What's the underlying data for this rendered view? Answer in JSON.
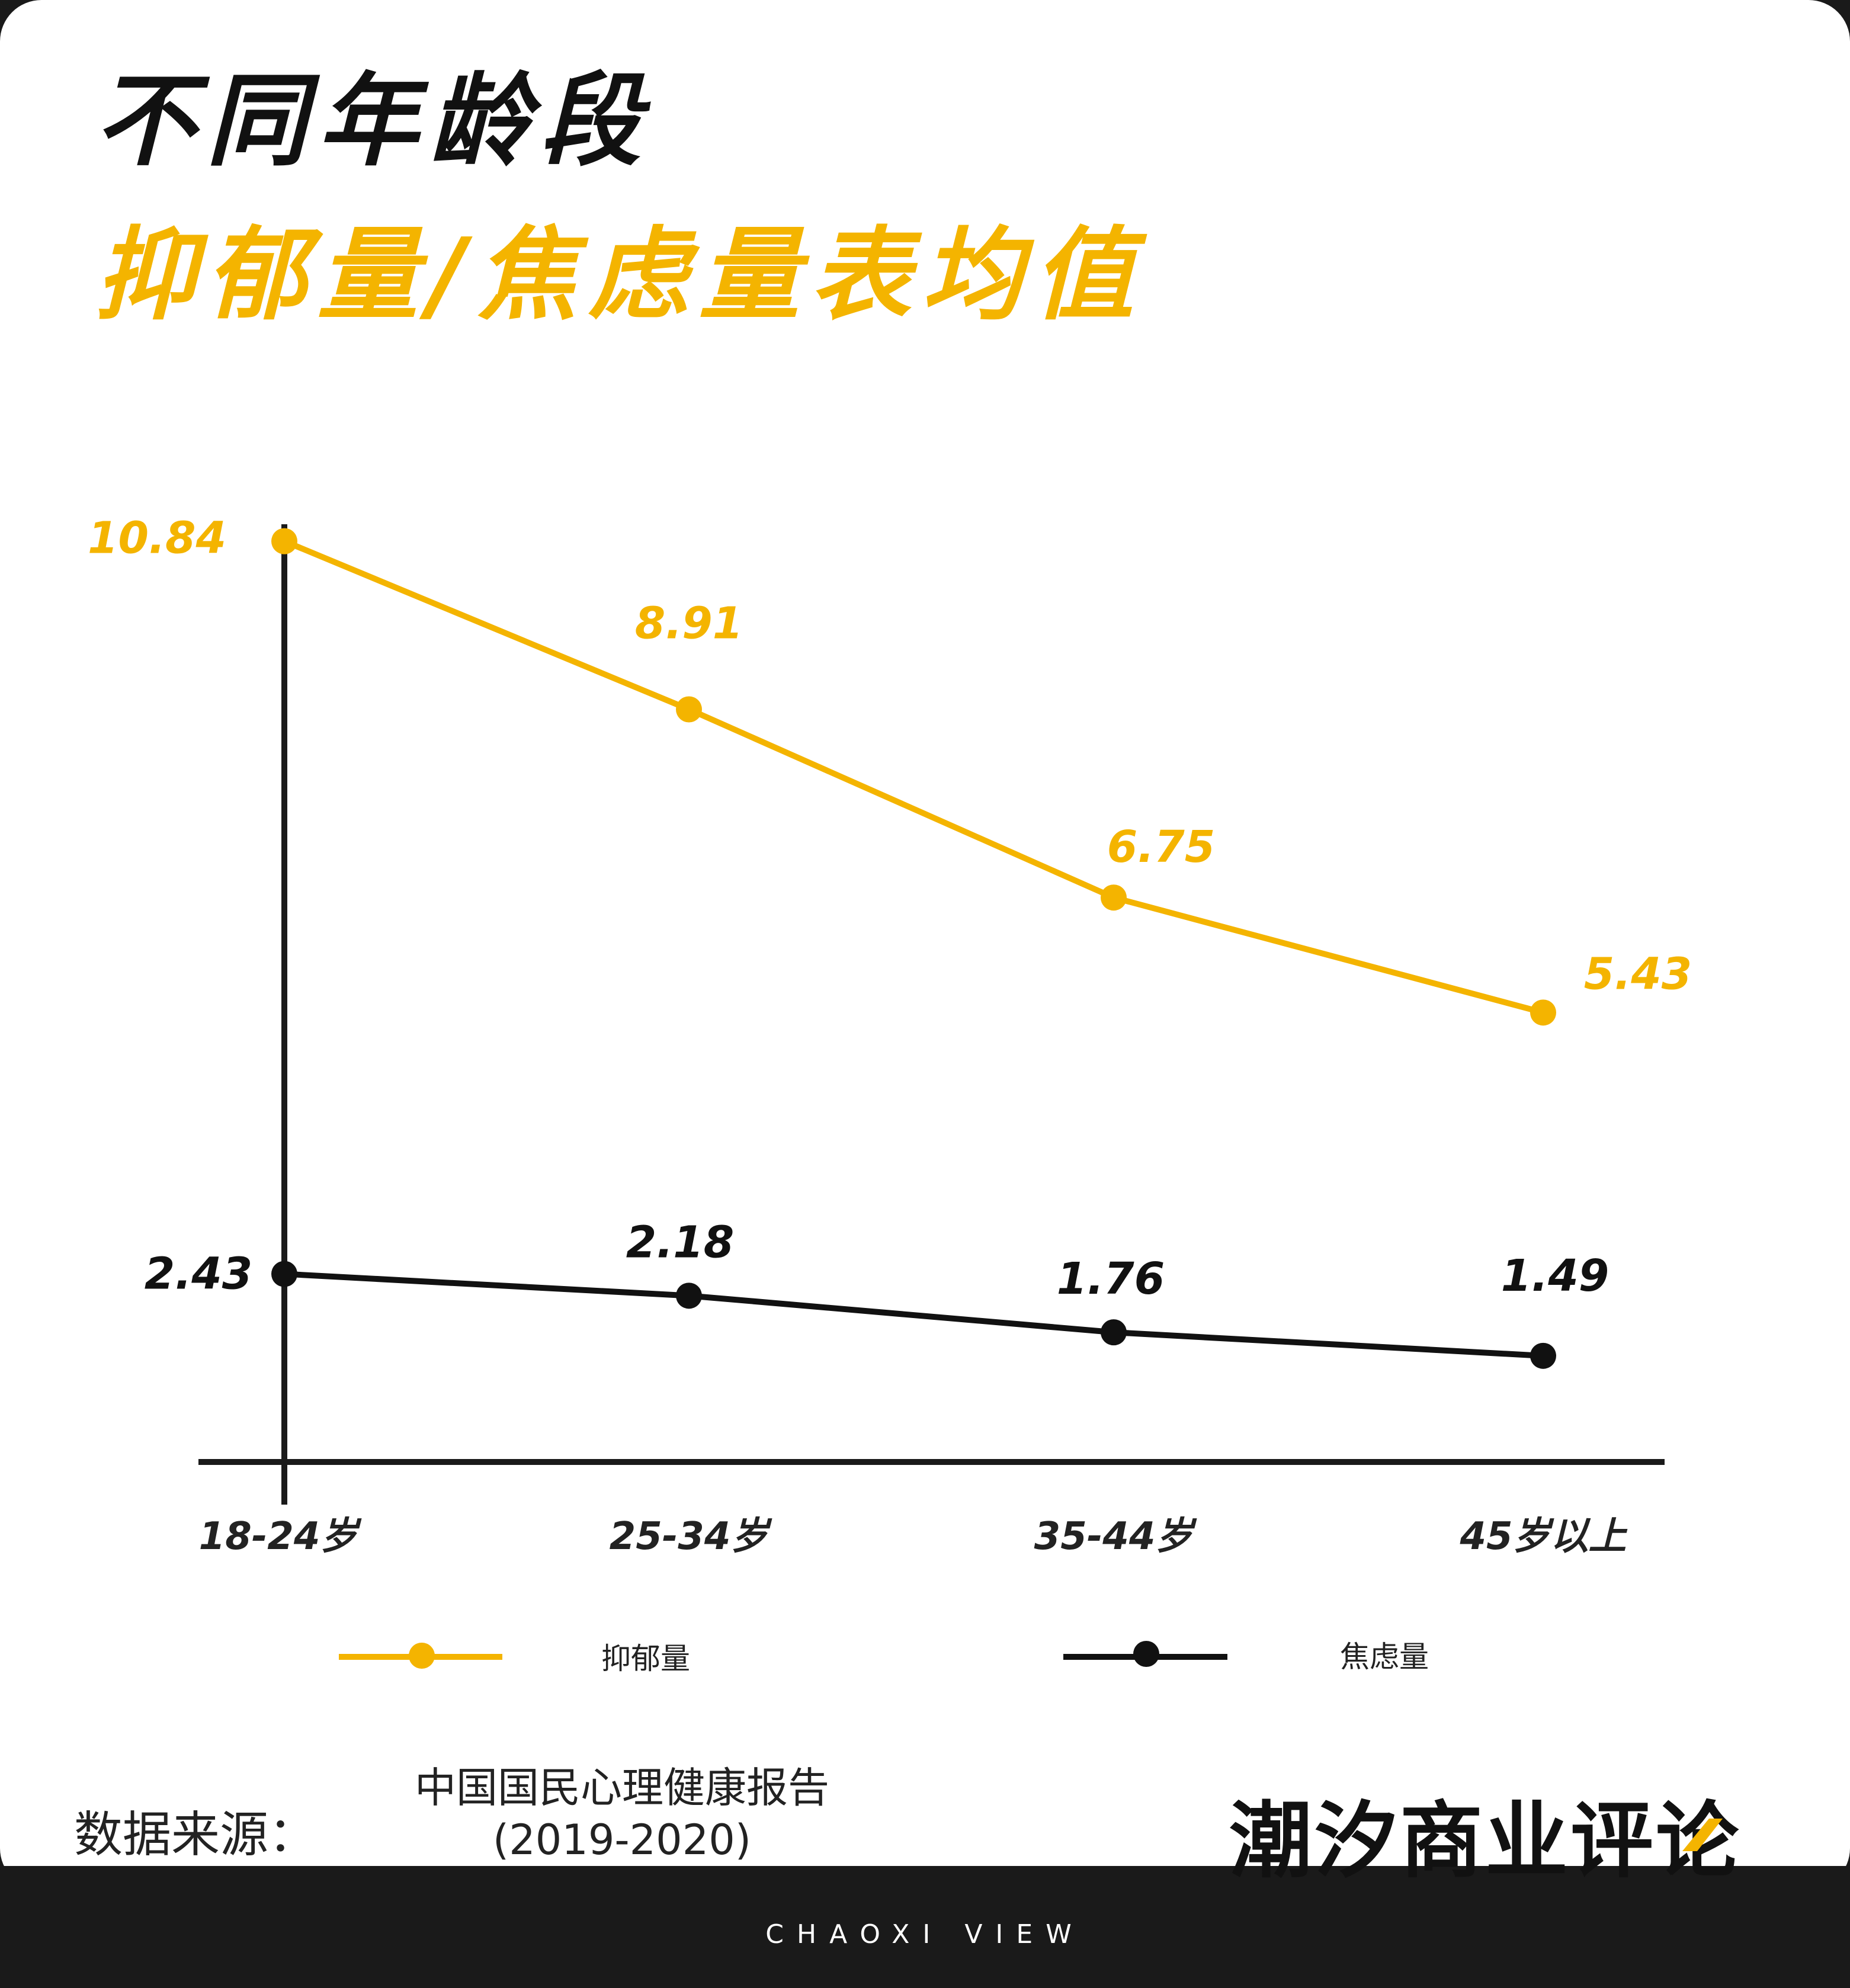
{
  "title_line1": "不同年龄段",
  "title_line2": "抑郁量/焦虑量表均值",
  "colors": {
    "depression": "#f4b400",
    "anxiety": "#111111",
    "axis": "#1a1a1a"
  },
  "chart_data": {
    "type": "line",
    "categories": [
      "18-24岁",
      "25-34岁",
      "35-44岁",
      "45岁以上"
    ],
    "series": [
      {
        "name": "抑郁量",
        "values": [
          10.84,
          8.91,
          6.75,
          5.43
        ],
        "labels": [
          "10.84",
          "8.91",
          "6.75",
          "5.43"
        ]
      },
      {
        "name": "焦虑量",
        "values": [
          2.43,
          2.18,
          1.76,
          1.49
        ],
        "labels": [
          "2.43",
          "2.18",
          "1.76",
          "1.49"
        ]
      }
    ],
    "title": "不同年龄段 抑郁量/焦虑量表均值",
    "ylim": [
      0,
      12
    ],
    "grid": false,
    "legend": "bottom"
  },
  "source": {
    "label": "数据来源：",
    "name": "中国国民心理健康报告",
    "years": "(2019-2020)"
  },
  "brand": {
    "name": "潮汐商业评论",
    "tagline": "CHAOXI VIEW"
  }
}
